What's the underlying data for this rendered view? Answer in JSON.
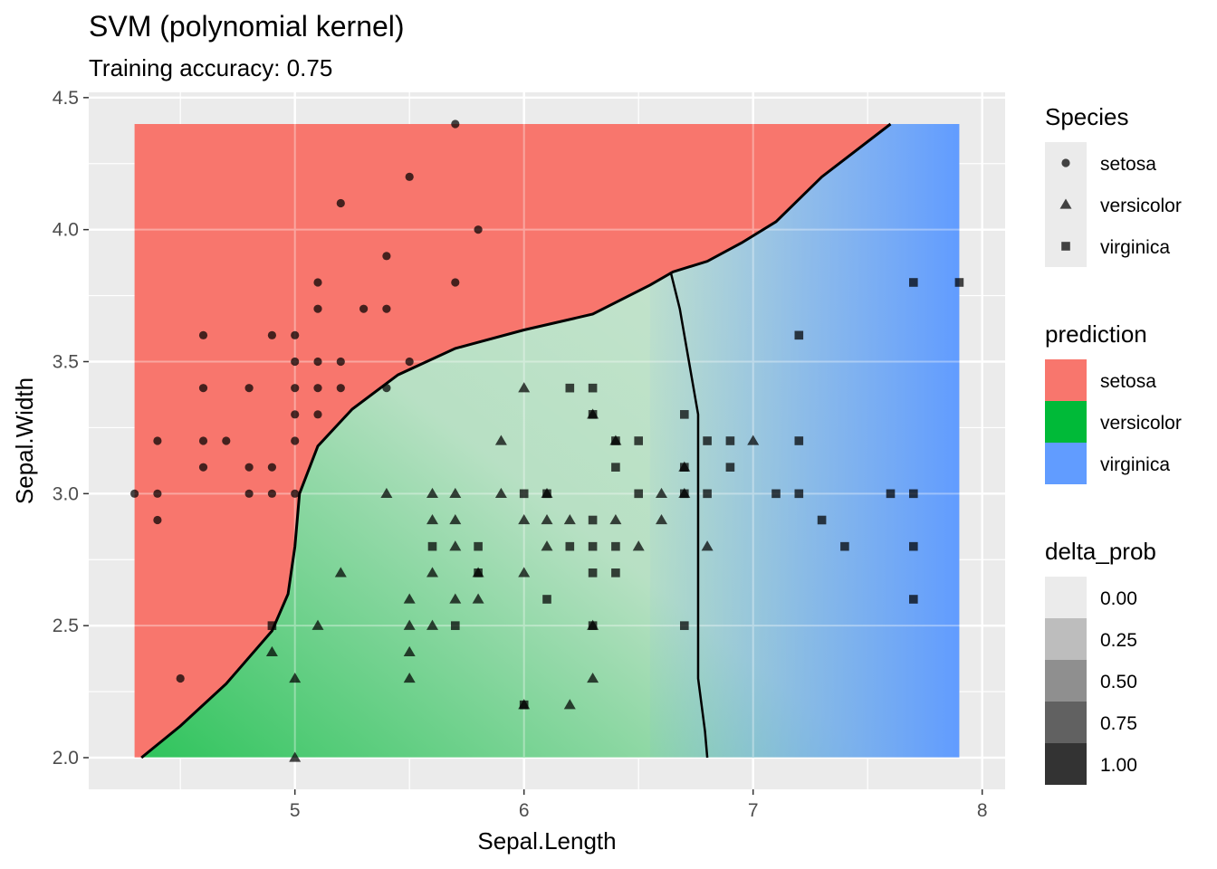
{
  "chart_data": {
    "type": "scatter",
    "title": "SVM (polynomial kernel)",
    "subtitle": "Training accuracy: 0.75",
    "xlabel": "Sepal.Length",
    "ylabel": "Sepal.Width",
    "xlim": [
      4.1,
      8.1
    ],
    "ylim": [
      1.88,
      4.52
    ],
    "xticks": [
      5,
      6,
      7,
      8
    ],
    "yticks": [
      2.0,
      2.5,
      3.0,
      3.5,
      4.0,
      4.5
    ],
    "xtick_labels": [
      "5",
      "6",
      "7",
      "8"
    ],
    "ytick_labels": [
      "2.0",
      "2.5",
      "3.0",
      "3.5",
      "4.0",
      "4.5"
    ],
    "grid": true,
    "background_region": {
      "x_range": [
        4.3,
        7.9
      ],
      "y_range": [
        2.0,
        4.4
      ],
      "description_colors": {
        "setosa": "#F8766D",
        "versicolor": "#00BA38",
        "virginica": "#619CFF"
      }
    },
    "boundary_setosa": [
      [
        4.33,
        2.0
      ],
      [
        4.5,
        2.12
      ],
      [
        4.7,
        2.28
      ],
      [
        4.9,
        2.48
      ],
      [
        4.97,
        2.62
      ],
      [
        5.0,
        2.8
      ],
      [
        5.02,
        3.0
      ],
      [
        5.1,
        3.18
      ],
      [
        5.25,
        3.32
      ],
      [
        5.45,
        3.45
      ],
      [
        5.7,
        3.55
      ],
      [
        6.0,
        3.62
      ],
      [
        6.3,
        3.68
      ],
      [
        6.55,
        3.79
      ],
      [
        6.65,
        3.84
      ],
      [
        6.8,
        3.88
      ],
      [
        6.95,
        3.95
      ],
      [
        7.1,
        4.03
      ],
      [
        7.3,
        4.2
      ],
      [
        7.6,
        4.4
      ]
    ],
    "boundary_virginica": [
      [
        6.64,
        3.84
      ],
      [
        6.68,
        3.7
      ],
      [
        6.72,
        3.5
      ],
      [
        6.76,
        3.3
      ],
      [
        6.76,
        3.0
      ],
      [
        6.76,
        2.6
      ],
      [
        6.76,
        2.3
      ],
      [
        6.79,
        2.1
      ],
      [
        6.8,
        2.0
      ]
    ],
    "legend_species": {
      "title": "Species",
      "items": [
        {
          "label": "setosa",
          "shape": "circle"
        },
        {
          "label": "versicolor",
          "shape": "triangle"
        },
        {
          "label": "virginica",
          "shape": "square"
        }
      ]
    },
    "legend_prediction": {
      "title": "prediction",
      "items": [
        {
          "label": "setosa",
          "color": "#F8766D"
        },
        {
          "label": "versicolor",
          "color": "#00BA38"
        },
        {
          "label": "virginica",
          "color": "#619CFF"
        }
      ]
    },
    "legend_delta": {
      "title": "delta_prob",
      "items": [
        {
          "label": "0.00",
          "color": "#EBEBEB"
        },
        {
          "label": "0.25",
          "color": "#BDBDBD"
        },
        {
          "label": "0.50",
          "color": "#8F8F8F"
        },
        {
          "label": "0.75",
          "color": "#616161"
        },
        {
          "label": "1.00",
          "color": "#333333"
        }
      ]
    },
    "series": [
      {
        "name": "setosa",
        "shape": "circle",
        "points": [
          [
            4.3,
            3.0
          ],
          [
            4.4,
            3.2
          ],
          [
            4.4,
            3.0
          ],
          [
            4.4,
            2.9
          ],
          [
            4.5,
            2.3
          ],
          [
            4.6,
            3.6
          ],
          [
            4.6,
            3.4
          ],
          [
            4.6,
            3.2
          ],
          [
            4.6,
            3.1
          ],
          [
            4.7,
            3.2
          ],
          [
            4.8,
            3.4
          ],
          [
            4.8,
            3.1
          ],
          [
            4.8,
            3.0
          ],
          [
            4.9,
            3.6
          ],
          [
            4.9,
            3.1
          ],
          [
            4.9,
            3.0
          ],
          [
            5.0,
            3.6
          ],
          [
            5.0,
            3.5
          ],
          [
            5.0,
            3.4
          ],
          [
            5.0,
            3.3
          ],
          [
            5.0,
            3.2
          ],
          [
            5.0,
            3.0
          ],
          [
            5.1,
            3.8
          ],
          [
            5.1,
            3.7
          ],
          [
            5.1,
            3.5
          ],
          [
            5.1,
            3.4
          ],
          [
            5.1,
            3.3
          ],
          [
            5.2,
            4.1
          ],
          [
            5.2,
            3.5
          ],
          [
            5.2,
            3.4
          ],
          [
            5.3,
            3.7
          ],
          [
            5.4,
            3.9
          ],
          [
            5.4,
            3.7
          ],
          [
            5.4,
            3.4
          ],
          [
            5.5,
            4.2
          ],
          [
            5.5,
            3.5
          ],
          [
            5.7,
            4.4
          ],
          [
            5.7,
            3.8
          ],
          [
            5.8,
            4.0
          ]
        ]
      },
      {
        "name": "versicolor",
        "shape": "triangle",
        "points": [
          [
            4.9,
            2.4
          ],
          [
            5.0,
            2.3
          ],
          [
            5.0,
            2.0
          ],
          [
            5.1,
            2.5
          ],
          [
            5.2,
            2.7
          ],
          [
            5.4,
            3.0
          ],
          [
            5.5,
            2.6
          ],
          [
            5.5,
            2.5
          ],
          [
            5.5,
            2.4
          ],
          [
            5.5,
            2.3
          ],
          [
            5.6,
            3.0
          ],
          [
            5.6,
            2.9
          ],
          [
            5.6,
            2.7
          ],
          [
            5.6,
            2.5
          ],
          [
            5.7,
            3.0
          ],
          [
            5.7,
            2.9
          ],
          [
            5.7,
            2.8
          ],
          [
            5.7,
            2.6
          ],
          [
            5.8,
            2.7
          ],
          [
            5.8,
            2.6
          ],
          [
            5.9,
            3.2
          ],
          [
            5.9,
            3.0
          ],
          [
            6.0,
            3.4
          ],
          [
            6.0,
            2.9
          ],
          [
            6.0,
            2.7
          ],
          [
            6.0,
            2.2
          ],
          [
            6.1,
            3.0
          ],
          [
            6.1,
            2.9
          ],
          [
            6.1,
            2.8
          ],
          [
            6.2,
            2.9
          ],
          [
            6.2,
            2.2
          ],
          [
            6.3,
            3.3
          ],
          [
            6.3,
            2.5
          ],
          [
            6.3,
            2.3
          ],
          [
            6.4,
            3.2
          ],
          [
            6.4,
            2.9
          ],
          [
            6.5,
            2.8
          ],
          [
            6.6,
            3.0
          ],
          [
            6.6,
            2.9
          ],
          [
            6.7,
            3.1
          ],
          [
            6.7,
            3.0
          ],
          [
            6.8,
            2.8
          ],
          [
            7.0,
            3.2
          ]
        ]
      },
      {
        "name": "virginica",
        "shape": "square",
        "points": [
          [
            4.9,
            2.5
          ],
          [
            5.6,
            2.8
          ],
          [
            5.7,
            2.5
          ],
          [
            5.8,
            2.8
          ],
          [
            5.8,
            2.7
          ],
          [
            6.0,
            3.0
          ],
          [
            6.0,
            2.2
          ],
          [
            6.1,
            3.0
          ],
          [
            6.1,
            2.6
          ],
          [
            6.2,
            3.4
          ],
          [
            6.2,
            2.8
          ],
          [
            6.3,
            3.4
          ],
          [
            6.3,
            3.3
          ],
          [
            6.3,
            2.9
          ],
          [
            6.3,
            2.8
          ],
          [
            6.3,
            2.7
          ],
          [
            6.3,
            2.5
          ],
          [
            6.4,
            3.2
          ],
          [
            6.4,
            3.1
          ],
          [
            6.4,
            2.8
          ],
          [
            6.4,
            2.7
          ],
          [
            6.5,
            3.2
          ],
          [
            6.5,
            3.0
          ],
          [
            6.7,
            3.3
          ],
          [
            6.7,
            3.1
          ],
          [
            6.7,
            3.0
          ],
          [
            6.7,
            2.5
          ],
          [
            6.8,
            3.2
          ],
          [
            6.8,
            3.0
          ],
          [
            6.9,
            3.2
          ],
          [
            6.9,
            3.1
          ],
          [
            7.1,
            3.0
          ],
          [
            7.2,
            3.6
          ],
          [
            7.2,
            3.2
          ],
          [
            7.2,
            3.0
          ],
          [
            7.3,
            2.9
          ],
          [
            7.4,
            2.8
          ],
          [
            7.6,
            3.0
          ],
          [
            7.7,
            3.8
          ],
          [
            7.7,
            3.0
          ],
          [
            7.7,
            2.8
          ],
          [
            7.7,
            2.6
          ],
          [
            7.9,
            3.8
          ]
        ]
      }
    ]
  }
}
